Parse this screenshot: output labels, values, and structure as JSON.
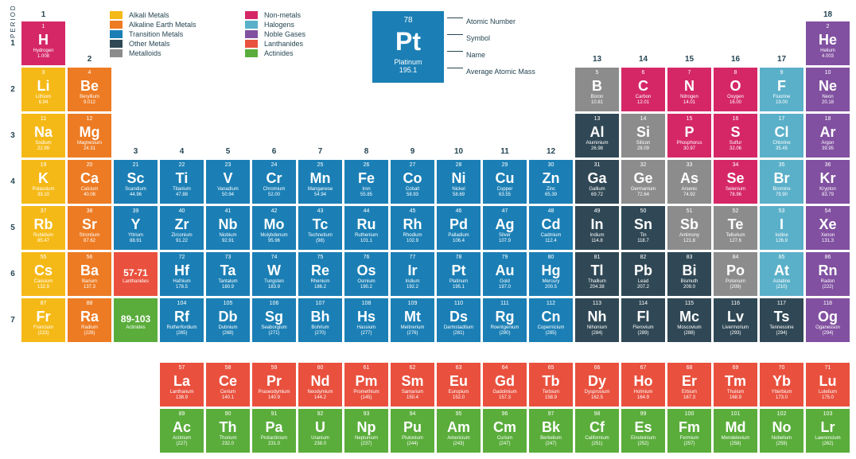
{
  "colors": {
    "alkali": "#f5b917",
    "alkaline": "#ed7b23",
    "transition": "#1b7fb5",
    "other": "#304855",
    "metalloid": "#8c8c8c",
    "nonmetal": "#d52766",
    "halogen": "#5bb0c9",
    "noble": "#8150a0",
    "lanth": "#e9513e",
    "act": "#5aad3b",
    "text": "#264653"
  },
  "legend": [
    {
      "label": "Alkali Metals",
      "c": "alkali"
    },
    {
      "label": "Non-metals",
      "c": "nonmetal"
    },
    {
      "label": "Alkaline Earth Metals",
      "c": "alkaline"
    },
    {
      "label": "Halogens",
      "c": "halogen"
    },
    {
      "label": "Transition Metals",
      "c": "transition"
    },
    {
      "label": "Noble Gases",
      "c": "noble"
    },
    {
      "label": "Other Metals",
      "c": "other"
    },
    {
      "label": "Lanthanides",
      "c": "lanth"
    },
    {
      "label": "Metalloids",
      "c": "metalloid"
    },
    {
      "label": "Actinides",
      "c": "act"
    }
  ],
  "example": {
    "num": "78",
    "sym": "Pt",
    "name": "Platinum",
    "mass": "195.1",
    "labels": [
      "Atomic Number",
      "Symbol",
      "Name",
      "Average Atomic Mass"
    ]
  },
  "period_label": "PERIOD",
  "group_numbers": {
    "1": "1",
    "2": "2",
    "3": "3",
    "4": "4",
    "5": "5",
    "6": "6",
    "7": "7",
    "8": "8",
    "9": "9",
    "10": "10",
    "11": "11",
    "12": "12",
    "13": "13",
    "14": "14",
    "15": "15",
    "16": "16",
    "17": "17",
    "18": "18"
  },
  "elements": [
    {
      "n": 1,
      "s": "H",
      "nm": "Hydrogen",
      "m": "1.008",
      "c": "nonmetal",
      "r": 1,
      "g": 1
    },
    {
      "n": 2,
      "s": "He",
      "nm": "Helium",
      "m": "4.003",
      "c": "noble",
      "r": 1,
      "g": 18
    },
    {
      "n": 3,
      "s": "Li",
      "nm": "Lithium",
      "m": "6.94",
      "c": "alkali",
      "r": 2,
      "g": 1
    },
    {
      "n": 4,
      "s": "Be",
      "nm": "Beryllium",
      "m": "9.012",
      "c": "alkaline",
      "r": 2,
      "g": 2
    },
    {
      "n": 5,
      "s": "B",
      "nm": "Boron",
      "m": "10.81",
      "c": "metalloid",
      "r": 2,
      "g": 13
    },
    {
      "n": 6,
      "s": "C",
      "nm": "Carbon",
      "m": "12.01",
      "c": "nonmetal",
      "r": 2,
      "g": 14
    },
    {
      "n": 7,
      "s": "N",
      "nm": "Nitrogen",
      "m": "14.01",
      "c": "nonmetal",
      "r": 2,
      "g": 15
    },
    {
      "n": 8,
      "s": "O",
      "nm": "Oxygen",
      "m": "16.00",
      "c": "nonmetal",
      "r": 2,
      "g": 16
    },
    {
      "n": 9,
      "s": "F",
      "nm": "Fluorine",
      "m": "19.00",
      "c": "halogen",
      "r": 2,
      "g": 17
    },
    {
      "n": 10,
      "s": "Ne",
      "nm": "Neon",
      "m": "20.18",
      "c": "noble",
      "r": 2,
      "g": 18
    },
    {
      "n": 11,
      "s": "Na",
      "nm": "Sodium",
      "m": "22.99",
      "c": "alkali",
      "r": 3,
      "g": 1
    },
    {
      "n": 12,
      "s": "Mg",
      "nm": "Magnesium",
      "m": "24.31",
      "c": "alkaline",
      "r": 3,
      "g": 2
    },
    {
      "n": 13,
      "s": "Al",
      "nm": "Aluminium",
      "m": "26.98",
      "c": "other",
      "r": 3,
      "g": 13
    },
    {
      "n": 14,
      "s": "Si",
      "nm": "Silicon",
      "m": "28.09",
      "c": "metalloid",
      "r": 3,
      "g": 14
    },
    {
      "n": 15,
      "s": "P",
      "nm": "Phosphorus",
      "m": "30.97",
      "c": "nonmetal",
      "r": 3,
      "g": 15
    },
    {
      "n": 16,
      "s": "S",
      "nm": "Sulfur",
      "m": "32.06",
      "c": "nonmetal",
      "r": 3,
      "g": 16
    },
    {
      "n": 17,
      "s": "Cl",
      "nm": "Chlorine",
      "m": "35.45",
      "c": "halogen",
      "r": 3,
      "g": 17
    },
    {
      "n": 18,
      "s": "Ar",
      "nm": "Argon",
      "m": "39.95",
      "c": "noble",
      "r": 3,
      "g": 18
    },
    {
      "n": 19,
      "s": "K",
      "nm": "Potassium",
      "m": "39.10",
      "c": "alkali",
      "r": 4,
      "g": 1
    },
    {
      "n": 20,
      "s": "Ca",
      "nm": "Calcium",
      "m": "40.08",
      "c": "alkaline",
      "r": 4,
      "g": 2
    },
    {
      "n": 21,
      "s": "Sc",
      "nm": "Scandium",
      "m": "44.96",
      "c": "transition",
      "r": 4,
      "g": 3
    },
    {
      "n": 22,
      "s": "Ti",
      "nm": "Titanium",
      "m": "47.88",
      "c": "transition",
      "r": 4,
      "g": 4
    },
    {
      "n": 23,
      "s": "V",
      "nm": "Vanadium",
      "m": "50.94",
      "c": "transition",
      "r": 4,
      "g": 5
    },
    {
      "n": 24,
      "s": "Cr",
      "nm": "Chromium",
      "m": "52.00",
      "c": "transition",
      "r": 4,
      "g": 6
    },
    {
      "n": 25,
      "s": "Mn",
      "nm": "Manganese",
      "m": "54.94",
      "c": "transition",
      "r": 4,
      "g": 7
    },
    {
      "n": 26,
      "s": "Fe",
      "nm": "Iron",
      "m": "55.85",
      "c": "transition",
      "r": 4,
      "g": 8
    },
    {
      "n": 27,
      "s": "Co",
      "nm": "Cobalt",
      "m": "58.93",
      "c": "transition",
      "r": 4,
      "g": 9
    },
    {
      "n": 28,
      "s": "Ni",
      "nm": "Nickel",
      "m": "58.69",
      "c": "transition",
      "r": 4,
      "g": 10
    },
    {
      "n": 29,
      "s": "Cu",
      "nm": "Copper",
      "m": "63.55",
      "c": "transition",
      "r": 4,
      "g": 11
    },
    {
      "n": 30,
      "s": "Zn",
      "nm": "Zinc",
      "m": "65.39",
      "c": "transition",
      "r": 4,
      "g": 12
    },
    {
      "n": 31,
      "s": "Ga",
      "nm": "Gallium",
      "m": "69.72",
      "c": "other",
      "r": 4,
      "g": 13
    },
    {
      "n": 32,
      "s": "Ge",
      "nm": "Germanium",
      "m": "72.64",
      "c": "metalloid",
      "r": 4,
      "g": 14
    },
    {
      "n": 33,
      "s": "As",
      "nm": "Arsenic",
      "m": "74.92",
      "c": "metalloid",
      "r": 4,
      "g": 15
    },
    {
      "n": 34,
      "s": "Se",
      "nm": "Selenium",
      "m": "78.96",
      "c": "nonmetal",
      "r": 4,
      "g": 16
    },
    {
      "n": 35,
      "s": "Br",
      "nm": "Bromine",
      "m": "79.90",
      "c": "halogen",
      "r": 4,
      "g": 17
    },
    {
      "n": 36,
      "s": "Kr",
      "nm": "Krypton",
      "m": "83.79",
      "c": "noble",
      "r": 4,
      "g": 18
    },
    {
      "n": 37,
      "s": "Rb",
      "nm": "Rubidium",
      "m": "85.47",
      "c": "alkali",
      "r": 5,
      "g": 1
    },
    {
      "n": 38,
      "s": "Sr",
      "nm": "Strontium",
      "m": "87.62",
      "c": "alkaline",
      "r": 5,
      "g": 2
    },
    {
      "n": 39,
      "s": "Y",
      "nm": "Yttrium",
      "m": "88.91",
      "c": "transition",
      "r": 5,
      "g": 3
    },
    {
      "n": 40,
      "s": "Zr",
      "nm": "Zirconium",
      "m": "91.22",
      "c": "transition",
      "r": 5,
      "g": 4
    },
    {
      "n": 41,
      "s": "Nb",
      "nm": "Niobium",
      "m": "92.91",
      "c": "transition",
      "r": 5,
      "g": 5
    },
    {
      "n": 42,
      "s": "Mo",
      "nm": "Molybdenum",
      "m": "95.96",
      "c": "transition",
      "r": 5,
      "g": 6
    },
    {
      "n": 43,
      "s": "Tc",
      "nm": "Technetium",
      "m": "(98)",
      "c": "transition",
      "r": 5,
      "g": 7
    },
    {
      "n": 44,
      "s": "Ru",
      "nm": "Ruthenium",
      "m": "101.1",
      "c": "transition",
      "r": 5,
      "g": 8
    },
    {
      "n": 45,
      "s": "Rh",
      "nm": "Rhodium",
      "m": "102.9",
      "c": "transition",
      "r": 5,
      "g": 9
    },
    {
      "n": 46,
      "s": "Pd",
      "nm": "Palladium",
      "m": "106.4",
      "c": "transition",
      "r": 5,
      "g": 10
    },
    {
      "n": 47,
      "s": "Ag",
      "nm": "Silver",
      "m": "107.9",
      "c": "transition",
      "r": 5,
      "g": 11
    },
    {
      "n": 48,
      "s": "Cd",
      "nm": "Cadmium",
      "m": "112.4",
      "c": "transition",
      "r": 5,
      "g": 12
    },
    {
      "n": 49,
      "s": "In",
      "nm": "Indium",
      "m": "114.8",
      "c": "other",
      "r": 5,
      "g": 13
    },
    {
      "n": 50,
      "s": "Sn",
      "nm": "Tin",
      "m": "118.7",
      "c": "other",
      "r": 5,
      "g": 14
    },
    {
      "n": 51,
      "s": "Sb",
      "nm": "Antimony",
      "m": "121.8",
      "c": "metalloid",
      "r": 5,
      "g": 15
    },
    {
      "n": 52,
      "s": "Te",
      "nm": "Tellurium",
      "m": "127.6",
      "c": "metalloid",
      "r": 5,
      "g": 16
    },
    {
      "n": 53,
      "s": "I",
      "nm": "Iodine",
      "m": "126.9",
      "c": "halogen",
      "r": 5,
      "g": 17
    },
    {
      "n": 54,
      "s": "Xe",
      "nm": "Xenon",
      "m": "131.3",
      "c": "noble",
      "r": 5,
      "g": 18
    },
    {
      "n": 55,
      "s": "Cs",
      "nm": "Caesium",
      "m": "132.9",
      "c": "alkali",
      "r": 6,
      "g": 1
    },
    {
      "n": 56,
      "s": "Ba",
      "nm": "Barium",
      "m": "137.3",
      "c": "alkaline",
      "r": 6,
      "g": 2
    },
    {
      "n": "",
      "s": "57-71",
      "nm": "Lanthanides",
      "m": "",
      "c": "lanth",
      "r": 6,
      "g": 3,
      "range": true
    },
    {
      "n": 72,
      "s": "Hf",
      "nm": "Hafnium",
      "m": "178.5",
      "c": "transition",
      "r": 6,
      "g": 4
    },
    {
      "n": 73,
      "s": "Ta",
      "nm": "Tantalum",
      "m": "180.9",
      "c": "transition",
      "r": 6,
      "g": 5
    },
    {
      "n": 74,
      "s": "W",
      "nm": "Tungsten",
      "m": "183.9",
      "c": "transition",
      "r": 6,
      "g": 6
    },
    {
      "n": 75,
      "s": "Re",
      "nm": "Rhenium",
      "m": "186.2",
      "c": "transition",
      "r": 6,
      "g": 7
    },
    {
      "n": 76,
      "s": "Os",
      "nm": "Osmium",
      "m": "190.2",
      "c": "transition",
      "r": 6,
      "g": 8
    },
    {
      "n": 77,
      "s": "Ir",
      "nm": "Iridium",
      "m": "192.2",
      "c": "transition",
      "r": 6,
      "g": 9
    },
    {
      "n": 78,
      "s": "Pt",
      "nm": "Platinum",
      "m": "195.1",
      "c": "transition",
      "r": 6,
      "g": 10
    },
    {
      "n": 79,
      "s": "Au",
      "nm": "Gold",
      "m": "197.0",
      "c": "transition",
      "r": 6,
      "g": 11
    },
    {
      "n": 80,
      "s": "Hg",
      "nm": "Mercury",
      "m": "200.5",
      "c": "transition",
      "r": 6,
      "g": 12
    },
    {
      "n": 81,
      "s": "Tl",
      "nm": "Thallium",
      "m": "204.38",
      "c": "other",
      "r": 6,
      "g": 13
    },
    {
      "n": 82,
      "s": "Pb",
      "nm": "Lead",
      "m": "207.2",
      "c": "other",
      "r": 6,
      "g": 14
    },
    {
      "n": 83,
      "s": "Bi",
      "nm": "Bismuth",
      "m": "209.0",
      "c": "other",
      "r": 6,
      "g": 15
    },
    {
      "n": 84,
      "s": "Po",
      "nm": "Polonium",
      "m": "(209)",
      "c": "metalloid",
      "r": 6,
      "g": 16
    },
    {
      "n": 85,
      "s": "At",
      "nm": "Astatine",
      "m": "(210)",
      "c": "halogen",
      "r": 6,
      "g": 17
    },
    {
      "n": 86,
      "s": "Rn",
      "nm": "Radon",
      "m": "(222)",
      "c": "noble",
      "r": 6,
      "g": 18
    },
    {
      "n": 87,
      "s": "Fr",
      "nm": "Francium",
      "m": "(223)",
      "c": "alkali",
      "r": 7,
      "g": 1
    },
    {
      "n": 88,
      "s": "Ra",
      "nm": "Radium",
      "m": "(226)",
      "c": "alkaline",
      "r": 7,
      "g": 2
    },
    {
      "n": "",
      "s": "89-103",
      "nm": "Actinides",
      "m": "",
      "c": "act",
      "r": 7,
      "g": 3,
      "range": true
    },
    {
      "n": 104,
      "s": "Rf",
      "nm": "Rutherfordium",
      "m": "(265)",
      "c": "transition",
      "r": 7,
      "g": 4
    },
    {
      "n": 105,
      "s": "Db",
      "nm": "Dubnium",
      "m": "(268)",
      "c": "transition",
      "r": 7,
      "g": 5
    },
    {
      "n": 106,
      "s": "Sg",
      "nm": "Seaborgium",
      "m": "(271)",
      "c": "transition",
      "r": 7,
      "g": 6
    },
    {
      "n": 107,
      "s": "Bh",
      "nm": "Bohrium",
      "m": "(270)",
      "c": "transition",
      "r": 7,
      "g": 7
    },
    {
      "n": 108,
      "s": "Hs",
      "nm": "Hassium",
      "m": "(277)",
      "c": "transition",
      "r": 7,
      "g": 8
    },
    {
      "n": 109,
      "s": "Mt",
      "nm": "Meitnerium",
      "m": "(276)",
      "c": "transition",
      "r": 7,
      "g": 9
    },
    {
      "n": 110,
      "s": "Ds",
      "nm": "Darmstadtium",
      "m": "(281)",
      "c": "transition",
      "r": 7,
      "g": 10
    },
    {
      "n": 111,
      "s": "Rg",
      "nm": "Roentgenium",
      "m": "(280)",
      "c": "transition",
      "r": 7,
      "g": 11
    },
    {
      "n": 112,
      "s": "Cn",
      "nm": "Copernicium",
      "m": "(285)",
      "c": "transition",
      "r": 7,
      "g": 12
    },
    {
      "n": 113,
      "s": "Nh",
      "nm": "Nihonium",
      "m": "(284)",
      "c": "other",
      "r": 7,
      "g": 13
    },
    {
      "n": 114,
      "s": "Fl",
      "nm": "Flerovium",
      "m": "(289)",
      "c": "other",
      "r": 7,
      "g": 14
    },
    {
      "n": 115,
      "s": "Mc",
      "nm": "Moscovium",
      "m": "(288)",
      "c": "other",
      "r": 7,
      "g": 15
    },
    {
      "n": 116,
      "s": "Lv",
      "nm": "Livermorium",
      "m": "(293)",
      "c": "other",
      "r": 7,
      "g": 16
    },
    {
      "n": 117,
      "s": "Ts",
      "nm": "Tennessine",
      "m": "(294)",
      "c": "other",
      "r": 7,
      "g": 17
    },
    {
      "n": 118,
      "s": "Og",
      "nm": "Oganesson",
      "m": "(294)",
      "c": "noble",
      "r": 7,
      "g": 18
    },
    {
      "n": 57,
      "s": "La",
      "nm": "Lanthanum",
      "m": "138.9",
      "c": "lanth",
      "r": 9,
      "g": 4
    },
    {
      "n": 58,
      "s": "Ce",
      "nm": "Cerium",
      "m": "140.1",
      "c": "lanth",
      "r": 9,
      "g": 5
    },
    {
      "n": 59,
      "s": "Pr",
      "nm": "Praseodymium",
      "m": "140.9",
      "c": "lanth",
      "r": 9,
      "g": 6
    },
    {
      "n": 60,
      "s": "Nd",
      "nm": "Neodymium",
      "m": "144.2",
      "c": "lanth",
      "r": 9,
      "g": 7
    },
    {
      "n": 61,
      "s": "Pm",
      "nm": "Promethium",
      "m": "(145)",
      "c": "lanth",
      "r": 9,
      "g": 8
    },
    {
      "n": 62,
      "s": "Sm",
      "nm": "Samarium",
      "m": "150.4",
      "c": "lanth",
      "r": 9,
      "g": 9
    },
    {
      "n": 63,
      "s": "Eu",
      "nm": "Europium",
      "m": "152.0",
      "c": "lanth",
      "r": 9,
      "g": 10
    },
    {
      "n": 64,
      "s": "Gd",
      "nm": "Gadolinium",
      "m": "157.3",
      "c": "lanth",
      "r": 9,
      "g": 11
    },
    {
      "n": 65,
      "s": "Tb",
      "nm": "Terbium",
      "m": "158.9",
      "c": "lanth",
      "r": 9,
      "g": 12
    },
    {
      "n": 66,
      "s": "Dy",
      "nm": "Dysprosium",
      "m": "162.5",
      "c": "lanth",
      "r": 9,
      "g": 13
    },
    {
      "n": 67,
      "s": "Ho",
      "nm": "Holmium",
      "m": "164.9",
      "c": "lanth",
      "r": 9,
      "g": 14
    },
    {
      "n": 68,
      "s": "Er",
      "nm": "Erbium",
      "m": "167.3",
      "c": "lanth",
      "r": 9,
      "g": 15
    },
    {
      "n": 69,
      "s": "Tm",
      "nm": "Thulium",
      "m": "168.9",
      "c": "lanth",
      "r": 9,
      "g": 16
    },
    {
      "n": 70,
      "s": "Yb",
      "nm": "Ytterbium",
      "m": "173.0",
      "c": "lanth",
      "r": 9,
      "g": 17
    },
    {
      "n": 71,
      "s": "Lu",
      "nm": "Lutetium",
      "m": "175.0",
      "c": "lanth",
      "r": 9,
      "g": 18
    },
    {
      "n": 89,
      "s": "Ac",
      "nm": "Actinium",
      "m": "(227)",
      "c": "act",
      "r": 10,
      "g": 4
    },
    {
      "n": 90,
      "s": "Th",
      "nm": "Thorium",
      "m": "232.0",
      "c": "act",
      "r": 10,
      "g": 5
    },
    {
      "n": 91,
      "s": "Pa",
      "nm": "Protactinium",
      "m": "231.0",
      "c": "act",
      "r": 10,
      "g": 6
    },
    {
      "n": 92,
      "s": "U",
      "nm": "Uranium",
      "m": "238.0",
      "c": "act",
      "r": 10,
      "g": 7
    },
    {
      "n": 93,
      "s": "Np",
      "nm": "Neptunium",
      "m": "(237)",
      "c": "act",
      "r": 10,
      "g": 8
    },
    {
      "n": 94,
      "s": "Pu",
      "nm": "Plutonium",
      "m": "(244)",
      "c": "act",
      "r": 10,
      "g": 9
    },
    {
      "n": 95,
      "s": "Am",
      "nm": "Americium",
      "m": "(243)",
      "c": "act",
      "r": 10,
      "g": 10
    },
    {
      "n": 96,
      "s": "Cm",
      "nm": "Curium",
      "m": "(247)",
      "c": "act",
      "r": 10,
      "g": 11
    },
    {
      "n": 97,
      "s": "Bk",
      "nm": "Berkelium",
      "m": "(247)",
      "c": "act",
      "r": 10,
      "g": 12
    },
    {
      "n": 98,
      "s": "Cf",
      "nm": "Californium",
      "m": "(251)",
      "c": "act",
      "r": 10,
      "g": 13
    },
    {
      "n": 99,
      "s": "Es",
      "nm": "Einsteinium",
      "m": "(252)",
      "c": "act",
      "r": 10,
      "g": 14
    },
    {
      "n": 100,
      "s": "Fm",
      "nm": "Fermium",
      "m": "(257)",
      "c": "act",
      "r": 10,
      "g": 15
    },
    {
      "n": 101,
      "s": "Md",
      "nm": "Mendelevium",
      "m": "(258)",
      "c": "act",
      "r": 10,
      "g": 16
    },
    {
      "n": 102,
      "s": "No",
      "nm": "Nobelium",
      "m": "(259)",
      "c": "act",
      "r": 10,
      "g": 17
    },
    {
      "n": 103,
      "s": "Lr",
      "nm": "Lawrencium",
      "m": "(262)",
      "c": "act",
      "r": 10,
      "g": 18
    }
  ],
  "group_header_row": {
    "1": 1,
    "2": 2,
    "13": 2,
    "14": 2,
    "15": 2,
    "16": 2,
    "17": 2,
    "18": 1,
    "3": 4,
    "4": 4,
    "5": 4,
    "6": 4,
    "7": 4,
    "8": 4,
    "9": 4,
    "10": 4,
    "11": 4,
    "12": 4
  }
}
